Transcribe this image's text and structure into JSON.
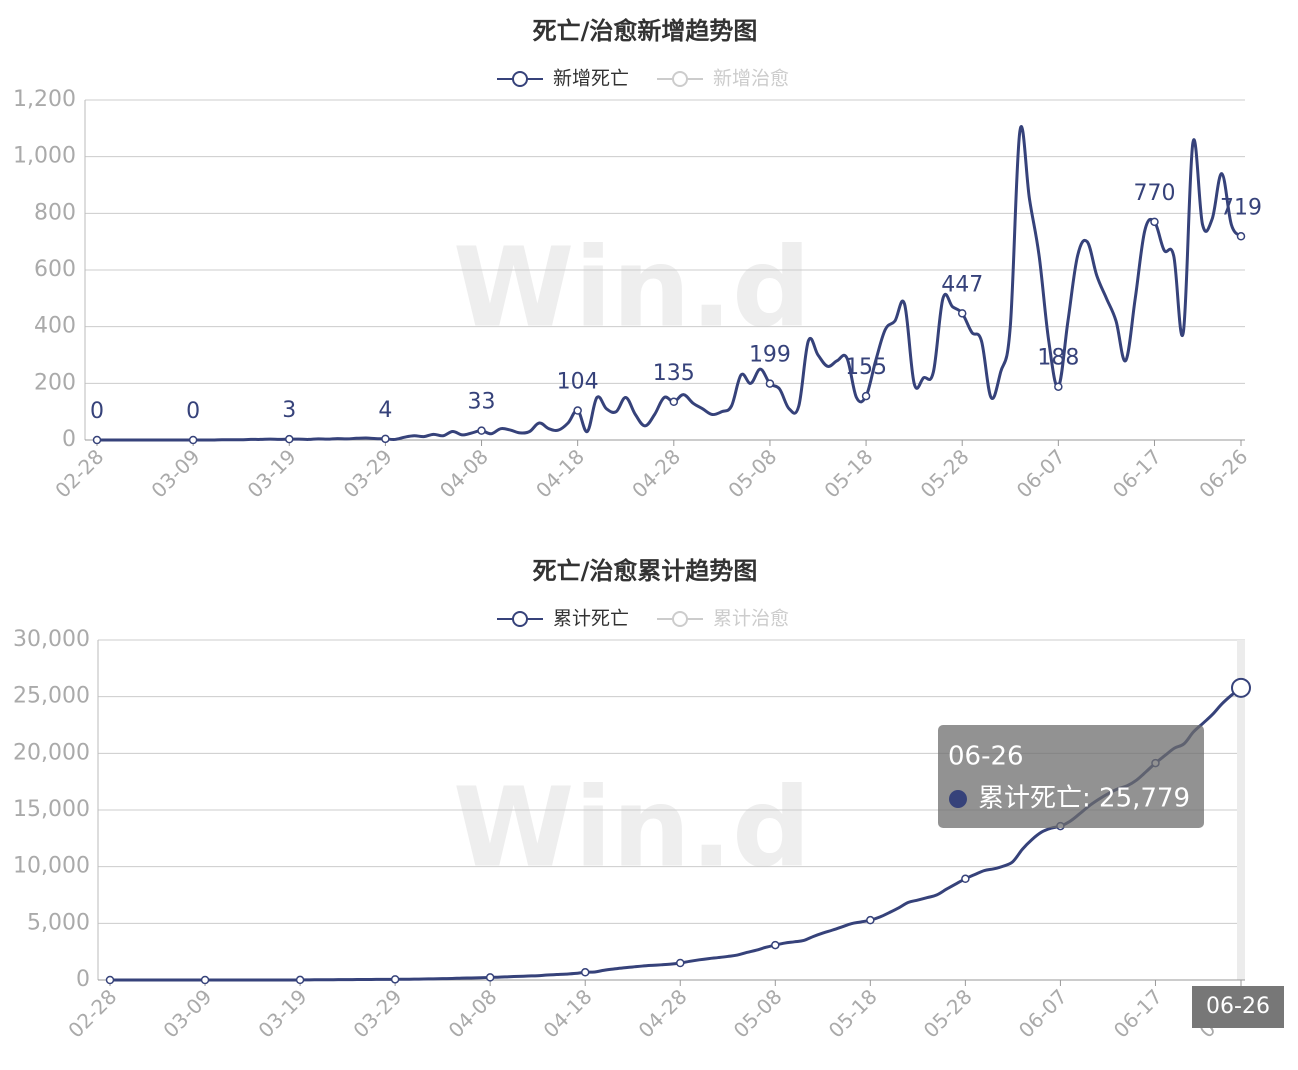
{
  "chart_data": [
    {
      "type": "line",
      "title": "死亡/治愈新增趋势图",
      "watermark": "Win.d",
      "legend": [
        {
          "name": "新增死亡",
          "color": "#36427a"
        },
        {
          "name": "新增治愈",
          "color": "#cccccc"
        }
      ],
      "categories": [
        "02-28",
        null,
        null,
        null,
        null,
        null,
        null,
        null,
        null,
        null,
        "03-09",
        null,
        null,
        null,
        null,
        null,
        null,
        null,
        null,
        null,
        "03-19",
        null,
        null,
        null,
        null,
        null,
        null,
        null,
        null,
        null,
        "03-29",
        null,
        null,
        null,
        null,
        null,
        null,
        null,
        null,
        null,
        "04-08",
        null,
        null,
        null,
        null,
        null,
        null,
        null,
        null,
        null,
        "04-18",
        null,
        null,
        null,
        null,
        null,
        null,
        null,
        null,
        null,
        "04-28",
        null,
        null,
        null,
        null,
        null,
        null,
        null,
        null,
        null,
        "05-08",
        null,
        null,
        null,
        null,
        null,
        null,
        null,
        null,
        null,
        "05-18",
        null,
        null,
        null,
        null,
        null,
        null,
        null,
        null,
        null,
        "05-28",
        null,
        null,
        null,
        null,
        null,
        null,
        null,
        null,
        null,
        "06-07",
        null,
        null,
        null,
        null,
        null,
        null,
        null,
        null,
        null,
        "06-17",
        null,
        null,
        null,
        null,
        null,
        null,
        null,
        null,
        "06-26"
      ],
      "series": [
        {
          "name": "新增死亡",
          "color": "#36427a",
          "values": [
            0,
            0,
            0,
            0,
            0,
            0,
            0,
            0,
            0,
            0,
            0,
            0,
            0,
            1,
            1,
            1,
            2,
            2,
            3,
            2,
            3,
            3,
            2,
            4,
            3,
            5,
            4,
            6,
            7,
            5,
            4,
            2,
            10,
            15,
            12,
            20,
            15,
            30,
            18,
            25,
            33,
            22,
            40,
            35,
            25,
            30,
            60,
            40,
            35,
            60,
            104,
            30,
            150,
            110,
            100,
            150,
            90,
            50,
            90,
            150,
            135,
            160,
            130,
            110,
            90,
            100,
            120,
            230,
            200,
            250,
            199,
            180,
            110,
            120,
            350,
            300,
            260,
            280,
            290,
            150,
            155,
            280,
            390,
            420,
            480,
            200,
            220,
            240,
            500,
            470,
            447,
            380,
            350,
            150,
            240,
            400,
            1090,
            850,
            650,
            350,
            188,
            420,
            650,
            700,
            580,
            500,
            420,
            280,
            500,
            740,
            770,
            670,
            650,
            380,
            1050,
            760,
            780,
            940,
            760,
            719
          ]
        }
      ],
      "ylim": [
        0,
        1200
      ],
      "yticks": [
        0,
        200,
        400,
        600,
        800,
        {
          "value": 1000,
          "label": "1,000"
        },
        {
          "value": 1200,
          "label": "1,200"
        }
      ],
      "grid": true
    },
    {
      "type": "line",
      "title": "死亡/治愈累计趋势图",
      "watermark": "Win.d",
      "legend": [
        {
          "name": "累计死亡",
          "color": "#36427a"
        },
        {
          "name": "累计治愈",
          "color": "#cccccc"
        }
      ],
      "categories": [
        "02-28",
        null,
        null,
        null,
        null,
        null,
        null,
        null,
        null,
        null,
        "03-09",
        null,
        null,
        null,
        null,
        null,
        null,
        null,
        null,
        null,
        "03-19",
        null,
        null,
        null,
        null,
        null,
        null,
        null,
        null,
        null,
        "03-29",
        null,
        null,
        null,
        null,
        null,
        null,
        null,
        null,
        null,
        "04-08",
        null,
        null,
        null,
        null,
        null,
        null,
        null,
        null,
        null,
        "04-18",
        null,
        null,
        null,
        null,
        null,
        null,
        null,
        null,
        null,
        "04-28",
        null,
        null,
        null,
        null,
        null,
        null,
        null,
        null,
        null,
        "05-08",
        null,
        null,
        null,
        null,
        null,
        null,
        null,
        null,
        null,
        "05-18",
        null,
        null,
        null,
        null,
        null,
        null,
        null,
        null,
        null,
        "05-28",
        null,
        null,
        null,
        null,
        null,
        null,
        null,
        null,
        null,
        "06-07",
        null,
        null,
        null,
        null,
        null,
        null,
        null,
        null,
        null,
        "06-17",
        null,
        null,
        null,
        null,
        null,
        null,
        null,
        null,
        "06-26"
      ],
      "series": [
        {
          "name": "累计死亡",
          "color": "#36427a",
          "values": [
            0,
            0,
            0,
            0,
            0,
            0,
            0,
            0,
            0,
            0,
            0,
            0,
            0,
            0,
            0,
            0,
            0,
            0,
            0,
            0,
            10,
            15,
            20,
            25,
            30,
            35,
            40,
            45,
            50,
            55,
            60,
            65,
            75,
            90,
            100,
            120,
            135,
            165,
            180,
            200,
            230,
            250,
            290,
            320,
            350,
            380,
            440,
            480,
            520,
            580,
            680,
            710,
            860,
            970,
            1070,
            1150,
            1230,
            1290,
            1340,
            1400,
            1500,
            1650,
            1780,
            1890,
            1980,
            2080,
            2200,
            2430,
            2630,
            2880,
            3080,
            3260,
            3370,
            3490,
            3840,
            4140,
            4400,
            4680,
            4970,
            5120,
            5280,
            5560,
            5950,
            6370,
            6850,
            7050,
            7270,
            7510,
            8010,
            8480,
            8930,
            9310,
            9660,
            9810,
            10050,
            10450,
            11540,
            12390,
            13040,
            13390,
            13580,
            14000,
            14650,
            15350,
            15930,
            16430,
            16850,
            17130,
            17630,
            18370,
            19140,
            19810,
            20460,
            20840,
            21890,
            22650,
            23430,
            24370,
            25130,
            25779
          ]
        }
      ],
      "tooltip": {
        "title": "06-26",
        "label": "累计死亡: 25,779"
      },
      "ylim": [
        0,
        30000
      ],
      "yticks": [
        0,
        {
          "value": 5000,
          "label": "5,000"
        },
        {
          "value": 10000,
          "label": "10,000"
        },
        {
          "value": 15000,
          "label": "15,000"
        },
        {
          "value": 20000,
          "label": "20,000"
        },
        {
          "value": 25000,
          "label": "25,000"
        },
        {
          "value": 30000,
          "label": "30,000"
        }
      ],
      "grid": true
    }
  ]
}
